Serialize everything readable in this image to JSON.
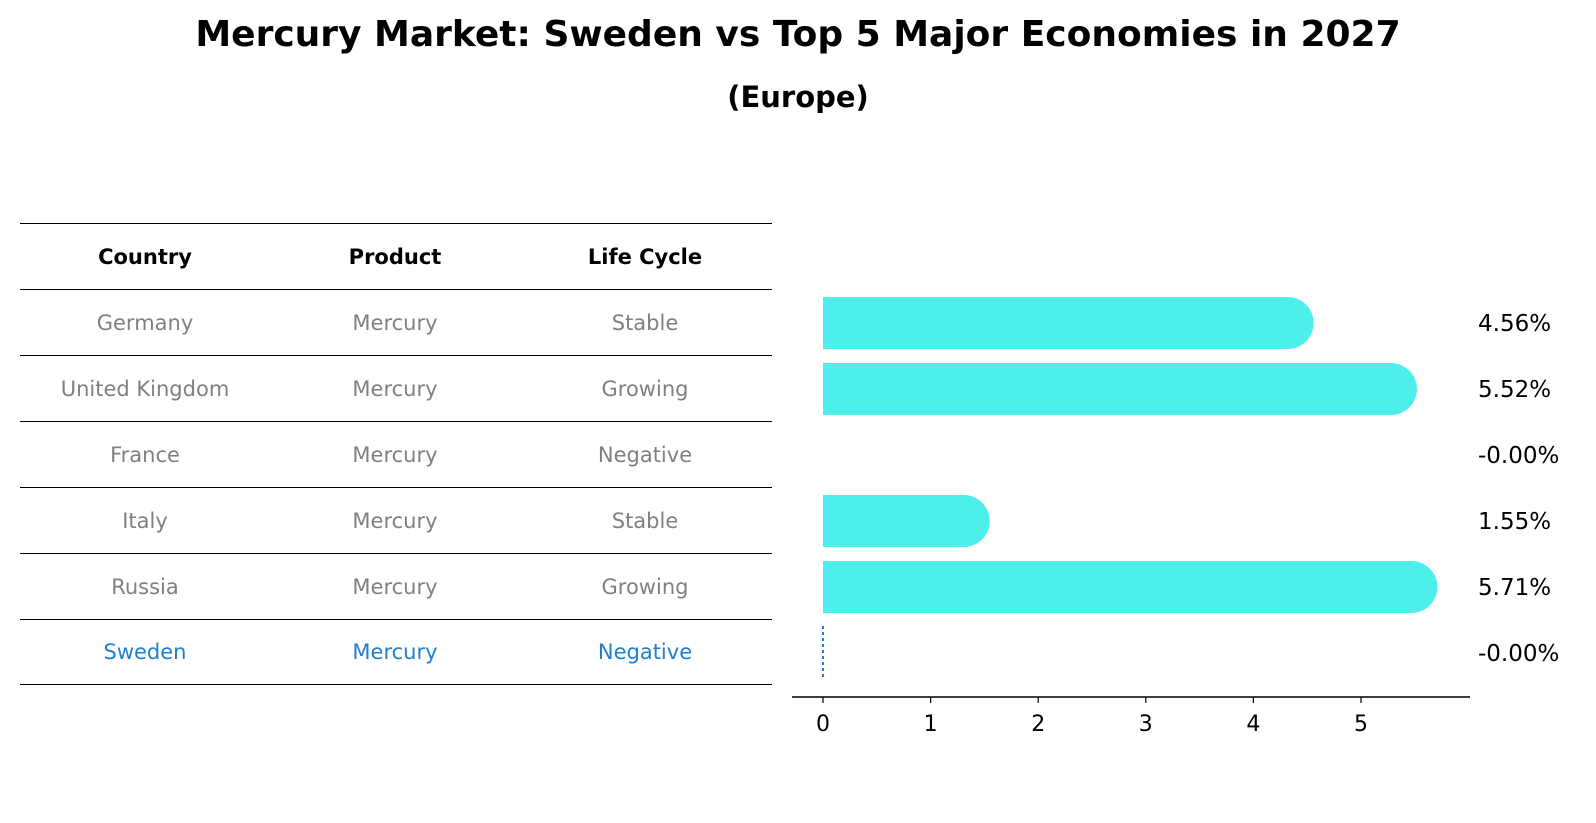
{
  "chart_data": {
    "type": "bar",
    "orientation": "horizontal",
    "title": "Mercury Market: Sweden vs Top 5 Major Economies in 2027",
    "subtitle": "(Europe)",
    "table": {
      "headers": [
        "Country",
        "Product",
        "Life Cycle"
      ],
      "rows": [
        [
          "Germany",
          "Mercury",
          "Stable"
        ],
        [
          "United Kingdom",
          "Mercury",
          "Growing"
        ],
        [
          "France",
          "Mercury",
          "Negative"
        ],
        [
          "Italy",
          "Mercury",
          "Stable"
        ],
        [
          "Russia",
          "Mercury",
          "Growing"
        ],
        [
          "Sweden",
          "Mercury",
          "Negative"
        ]
      ],
      "highlight_row": 5
    },
    "categories": [
      "Germany",
      "United Kingdom",
      "France",
      "Italy",
      "Russia",
      "Sweden"
    ],
    "values": [
      4.56,
      5.52,
      -0.0,
      1.55,
      5.71,
      -0.0
    ],
    "value_labels": [
      "4.56%",
      "5.52%",
      "-0.00%",
      "1.55%",
      "5.71%",
      "-0.00%"
    ],
    "xticks": [
      0,
      1,
      2,
      3,
      4,
      5
    ],
    "xlim": [
      -0.3,
      6.0
    ],
    "bar_color": "#4eeeea",
    "highlight_color": "#1f7fd0",
    "xlabel": "",
    "ylabel": ""
  }
}
